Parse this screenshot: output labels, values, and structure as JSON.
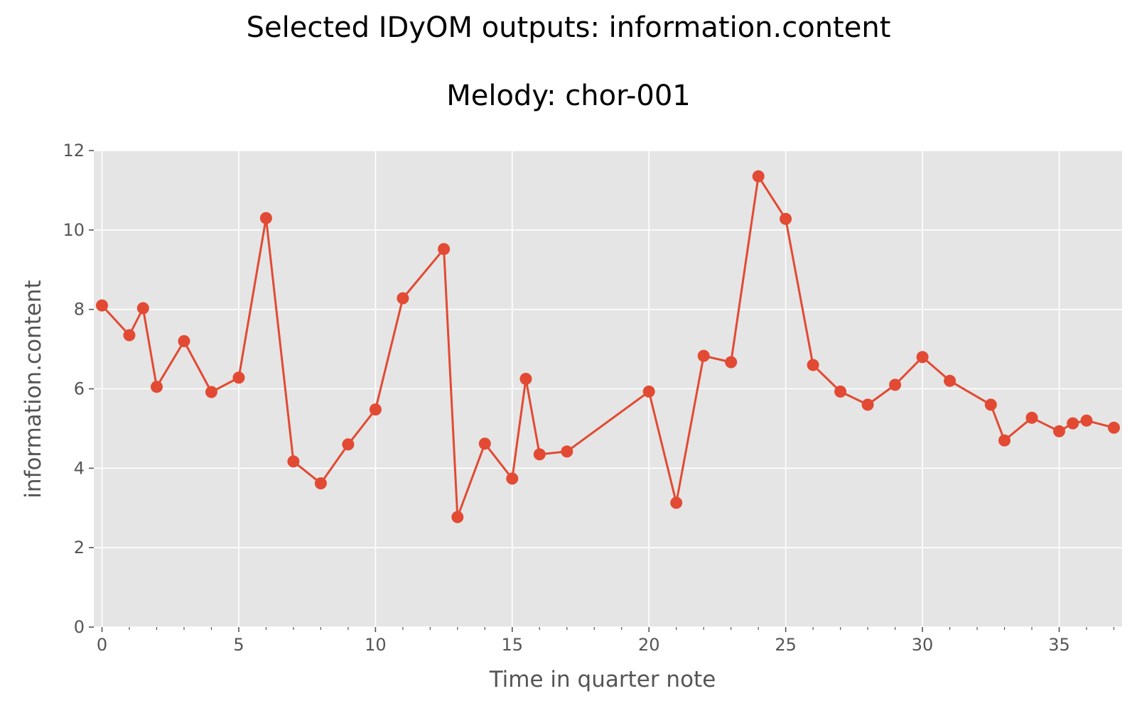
{
  "chart_data": {
    "type": "line",
    "title": "Selected IDyOM outputs: information.content",
    "subtitle": "Melody: chor-001",
    "xlabel": "Time in quarter note",
    "ylabel": "information.content",
    "xlim": [
      -0.3,
      37.3
    ],
    "ylim": [
      0,
      12
    ],
    "x_ticks": [
      0,
      5,
      10,
      15,
      20,
      25,
      30,
      35
    ],
    "x_tick_labels": [
      "0",
      "5",
      "10",
      "15",
      "20",
      "25",
      "30",
      "35"
    ],
    "x_minor_ticks": [
      1,
      2,
      3,
      4,
      6,
      7,
      8,
      9,
      11,
      12,
      13,
      14,
      16,
      17,
      18,
      19,
      21,
      22,
      23,
      24,
      26,
      27,
      28,
      29,
      31,
      32,
      33,
      34,
      36,
      37
    ],
    "y_ticks": [
      0,
      2,
      4,
      6,
      8,
      10,
      12
    ],
    "y_tick_labels": [
      "0",
      "2",
      "4",
      "6",
      "8",
      "10",
      "12"
    ],
    "grid": true,
    "legend": "none",
    "colors": {
      "series": "#e24a33",
      "plot_bg": "#e5e5e5",
      "grid": "#ffffff"
    },
    "series": [
      {
        "x": [
          0,
          1,
          1.5,
          2,
          3,
          4,
          5,
          6,
          7,
          8,
          9,
          10,
          11,
          12.5,
          13,
          14,
          15,
          15.5,
          16,
          17,
          20,
          21,
          22,
          23,
          24,
          25,
          26,
          27,
          28,
          29,
          30,
          31,
          32.5,
          33,
          34,
          35,
          35.5,
          36,
          37
        ],
        "values": [
          8.1,
          7.35,
          8.03,
          6.05,
          7.2,
          5.92,
          6.28,
          10.3,
          4.17,
          3.62,
          4.6,
          5.48,
          8.28,
          9.52,
          2.77,
          4.62,
          3.74,
          6.25,
          4.35,
          4.42,
          5.93,
          3.13,
          6.83,
          6.67,
          11.35,
          10.28,
          6.6,
          5.93,
          5.6,
          6.1,
          6.8,
          6.2,
          5.6,
          4.7,
          5.27,
          4.93,
          5.13,
          5.2,
          5.02
        ]
      }
    ]
  }
}
